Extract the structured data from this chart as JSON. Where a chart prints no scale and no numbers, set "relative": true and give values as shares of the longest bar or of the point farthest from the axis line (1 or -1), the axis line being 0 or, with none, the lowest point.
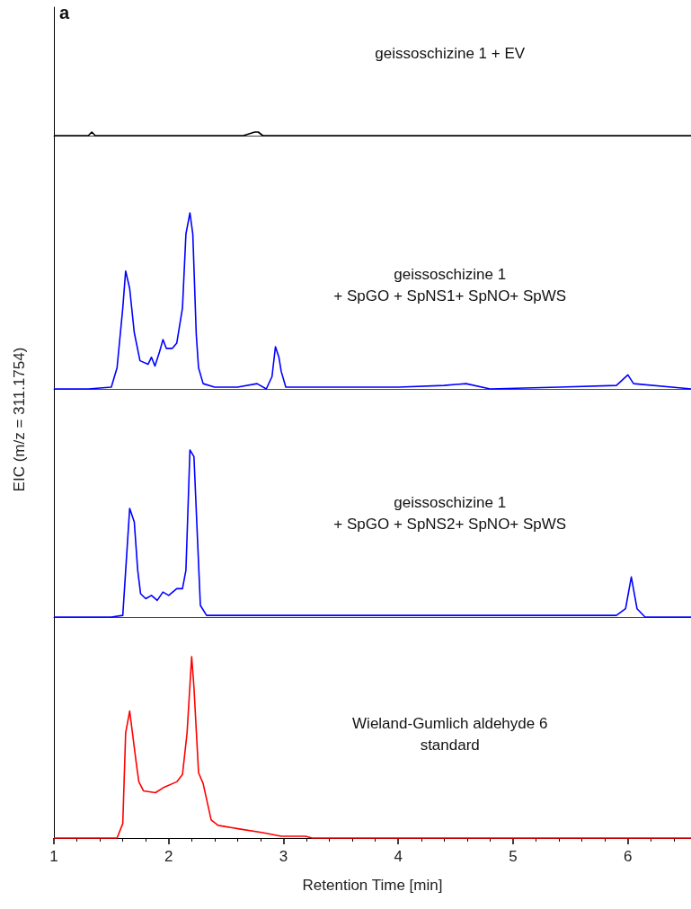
{
  "chart_data": [
    {
      "type": "line",
      "relative": true,
      "annotations": [
        "a"
      ],
      "xlim": [
        1,
        6.55
      ],
      "xticks": [
        1,
        2,
        3,
        4,
        5,
        6
      ],
      "tick_labels": false,
      "legend": false,
      "series": [
        {
          "name": "geissoschizine 1 + EV",
          "color": "#000000",
          "x": [
            1,
            1.3,
            1.33,
            1.36,
            2,
            2.65,
            2.7,
            2.75,
            2.78,
            2.82,
            3.5,
            6.55
          ],
          "values": [
            0,
            0,
            1,
            0,
            0,
            0,
            0.5,
            1,
            1,
            0,
            0,
            0
          ]
        }
      ]
    },
    {
      "type": "line",
      "relative": true,
      "xlim": [
        1,
        6.55
      ],
      "xticks": [
        1,
        2,
        3,
        4,
        5,
        6
      ],
      "tick_labels": false,
      "legend": false,
      "series": [
        {
          "name": "geissoschizine 1\n+ SpGO + SpNS1+ SpNO+ SpWS",
          "color": "#0000ff",
          "x": [
            1,
            1.3,
            1.5,
            1.55,
            1.6,
            1.625,
            1.66,
            1.7,
            1.75,
            1.82,
            1.85,
            1.88,
            1.92,
            1.95,
            1.98,
            2.03,
            2.07,
            2.12,
            2.15,
            2.185,
            2.21,
            2.24,
            2.26,
            2.3,
            2.4,
            2.6,
            2.77,
            2.85,
            2.9,
            2.93,
            2.96,
            2.98,
            3.02,
            3.5,
            4,
            4.4,
            4.59,
            4.8,
            5.4,
            5.9,
            6,
            6.05,
            6.55
          ],
          "values": [
            0,
            0,
            0.01,
            0.12,
            0.46,
            0.67,
            0.57,
            0.32,
            0.16,
            0.14,
            0.18,
            0.13,
            0.21,
            0.28,
            0.23,
            0.23,
            0.26,
            0.46,
            0.88,
            1,
            0.88,
            0.31,
            0.12,
            0.03,
            0.01,
            0.01,
            0.03,
            0,
            0.07,
            0.24,
            0.18,
            0.1,
            0.01,
            0.01,
            0.01,
            0.02,
            0.03,
            0,
            0.01,
            0.02,
            0.08,
            0.03,
            0
          ]
        }
      ]
    },
    {
      "type": "line",
      "relative": true,
      "ylabel": "EIC (m/z = 311.1754)",
      "xlim": [
        1,
        6.55
      ],
      "xticks": [
        1,
        2,
        3,
        4,
        5,
        6
      ],
      "tick_labels": false,
      "legend": false,
      "series": [
        {
          "name": "geissoschizine 1\n+ SpGO + SpNS2+ SpNO+ SpWS",
          "color": "#0000ff",
          "x": [
            1,
            1.5,
            1.6,
            1.63,
            1.66,
            1.7,
            1.73,
            1.755,
            1.8,
            1.85,
            1.9,
            1.95,
            2,
            2.07,
            2.12,
            2.15,
            2.185,
            2.22,
            2.25,
            2.276,
            2.33,
            3,
            4,
            5,
            5.9,
            5.98,
            6.03,
            6.08,
            6.15,
            6.55
          ],
          "values": [
            0,
            0,
            0.01,
            0.33,
            0.65,
            0.57,
            0.28,
            0.14,
            0.11,
            0.13,
            0.1,
            0.15,
            0.13,
            0.17,
            0.17,
            0.28,
            1,
            0.96,
            0.48,
            0.07,
            0.01,
            0.01,
            0.01,
            0.01,
            0.01,
            0.05,
            0.24,
            0.05,
            0,
            0
          ]
        }
      ]
    },
    {
      "type": "line",
      "relative": true,
      "xlabel": "Retention Time [min]",
      "xlim": [
        1,
        6.55
      ],
      "xticks": [
        1,
        2,
        3,
        4,
        5,
        6
      ],
      "legend": false,
      "series": [
        {
          "name": "Wieland-Gumlich aldehyde 6\nstandard",
          "color": "#ff0000",
          "x": [
            1,
            1.55,
            1.6,
            1.625,
            1.66,
            1.69,
            1.72,
            1.74,
            1.78,
            1.885,
            1.96,
            2.07,
            2.12,
            2.16,
            2.2,
            2.22,
            2.26,
            2.3,
            2.37,
            2.43,
            2.615,
            2.82,
            2.98,
            3.19,
            3.25,
            6.55
          ],
          "values": [
            0,
            0,
            0.08,
            0.58,
            0.7,
            0.55,
            0.4,
            0.31,
            0.26,
            0.25,
            0.28,
            0.31,
            0.35,
            0.58,
            1,
            0.83,
            0.36,
            0.3,
            0.1,
            0.07,
            0.05,
            0.03,
            0.01,
            0.01,
            0,
            0
          ]
        }
      ]
    }
  ]
}
